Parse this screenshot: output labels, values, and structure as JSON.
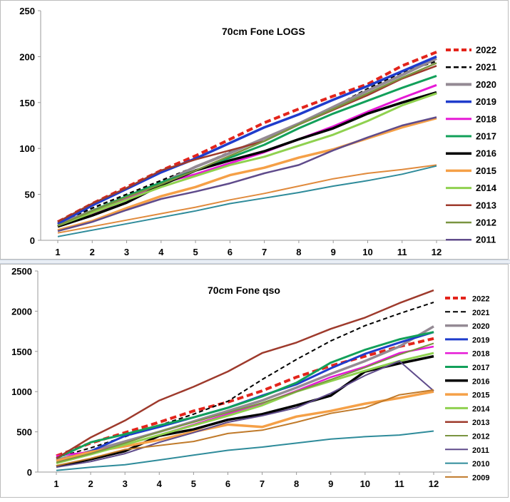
{
  "chart_data": [
    {
      "type": "line",
      "title": "70cm Fone LOGS",
      "x": [
        1,
        2,
        3,
        4,
        5,
        6,
        7,
        8,
        9,
        10,
        11,
        12
      ],
      "ylim": [
        0,
        250
      ],
      "yticks": [
        0,
        50,
        100,
        150,
        200,
        250
      ],
      "grid": false,
      "legend_position": "right",
      "series": [
        {
          "name": "2022",
          "color": "#e3241b",
          "dash": "dashed",
          "width": 4,
          "values": [
            20,
            40,
            58,
            76,
            92,
            110,
            128,
            143,
            157,
            170,
            190,
            205
          ]
        },
        {
          "name": "2021",
          "color": "#000000",
          "dash": "dashed",
          "width": 2.5,
          "values": [
            18,
            35,
            50,
            65,
            80,
            96,
            111,
            127,
            145,
            165,
            183,
            195
          ]
        },
        {
          "name": "2020",
          "color": "#948a94",
          "dash": "solid",
          "width": 4,
          "values": [
            17,
            32,
            46,
            62,
            80,
            95,
            111,
            127,
            145,
            163,
            180,
            198
          ]
        },
        {
          "name": "2019",
          "color": "#1f3ccc",
          "dash": "solid",
          "width": 3.5,
          "values": [
            18,
            38,
            56,
            74,
            89,
            106,
            123,
            137,
            153,
            168,
            184,
            200
          ]
        },
        {
          "name": "2018",
          "color": "#e619d6",
          "dash": "solid",
          "width": 3,
          "values": [
            15,
            28,
            45,
            62,
            72,
            84,
            96,
            110,
            124,
            140,
            155,
            169
          ]
        },
        {
          "name": "2017",
          "color": "#12a05a",
          "dash": "solid",
          "width": 3,
          "values": [
            15,
            32,
            48,
            63,
            76,
            90,
            104,
            122,
            138,
            152,
            166,
            179
          ]
        },
        {
          "name": "2016",
          "color": "#000000",
          "dash": "solid",
          "width": 3.5,
          "values": [
            15,
            27,
            41,
            60,
            76,
            87,
            97,
            110,
            122,
            138,
            150,
            161
          ]
        },
        {
          "name": "2015",
          "color": "#f5a047",
          "dash": "solid",
          "width": 3.5,
          "values": [
            11,
            21,
            35,
            48,
            58,
            71,
            79,
            90,
            99,
            111,
            123,
            133
          ]
        },
        {
          "name": "2014",
          "color": "#8fd14f",
          "dash": "solid",
          "width": 3,
          "values": [
            16,
            30,
            44,
            58,
            70,
            82,
            91,
            103,
            115,
            130,
            147,
            160
          ]
        },
        {
          "name": "2013",
          "color": "#9e3a2c",
          "dash": "solid",
          "width": 2.5,
          "values": [
            20,
            40,
            57,
            76,
            88,
            98,
            108,
            126,
            142,
            158,
            176,
            190
          ]
        },
        {
          "name": "2012",
          "color": "#7a9440",
          "dash": "solid",
          "width": 2.5,
          "values": [
            16,
            32,
            47,
            61,
            76,
            92,
            108,
            126,
            143,
            160,
            177,
            193
          ]
        },
        {
          "name": "2011",
          "color": "#5f4b8b",
          "dash": "solid",
          "width": 2.5,
          "values": [
            10,
            20,
            33,
            45,
            53,
            62,
            73,
            82,
            98,
            112,
            125,
            134
          ]
        },
        {
          "name": "",
          "color": "#e08a3c",
          "dash": "solid",
          "width": 2,
          "values": [
            8,
            15,
            22,
            29,
            36,
            44,
            51,
            59,
            67,
            73,
            77,
            82
          ]
        },
        {
          "name": "",
          "color": "#2e8b9a",
          "dash": "solid",
          "width": 2,
          "values": [
            4,
            11,
            18,
            25,
            32,
            40,
            46,
            52,
            59,
            65,
            72,
            81
          ]
        }
      ]
    },
    {
      "type": "line",
      "title": "70cm Fone  qso",
      "x": [
        1,
        2,
        3,
        4,
        5,
        6,
        7,
        8,
        9,
        10,
        11,
        12
      ],
      "ylim": [
        0,
        2500
      ],
      "yticks": [
        0,
        500,
        1000,
        1500,
        2000,
        2500
      ],
      "grid": false,
      "legend_position": "right",
      "series": [
        {
          "name": "2022",
          "color": "#e3241b",
          "dash": "dashed",
          "width": 4,
          "values": [
            200,
            360,
            490,
            620,
            760,
            870,
            1010,
            1180,
            1320,
            1440,
            1560,
            1660
          ]
        },
        {
          "name": "2021",
          "color": "#000000",
          "dash": "dashed",
          "width": 2,
          "values": [
            180,
            300,
            440,
            580,
            720,
            880,
            1150,
            1400,
            1630,
            1820,
            1970,
            2110
          ]
        },
        {
          "name": "2020",
          "color": "#948a94",
          "dash": "solid",
          "width": 3.5,
          "values": [
            150,
            260,
            380,
            500,
            630,
            760,
            890,
            1050,
            1220,
            1380,
            1560,
            1810
          ]
        },
        {
          "name": "2019",
          "color": "#1f3ccc",
          "dash": "solid",
          "width": 3,
          "values": [
            140,
            260,
            450,
            560,
            680,
            800,
            950,
            1090,
            1290,
            1470,
            1610,
            1740
          ]
        },
        {
          "name": "2018",
          "color": "#e619d6",
          "dash": "solid",
          "width": 2.5,
          "values": [
            200,
            250,
            340,
            460,
            590,
            720,
            850,
            1010,
            1180,
            1310,
            1480,
            1560
          ]
        },
        {
          "name": "2017",
          "color": "#12a05a",
          "dash": "solid",
          "width": 3,
          "values": [
            170,
            370,
            470,
            580,
            680,
            800,
            940,
            1110,
            1360,
            1520,
            1650,
            1740
          ]
        },
        {
          "name": "2016",
          "color": "#000000",
          "dash": "solid",
          "width": 3.5,
          "values": [
            70,
            160,
            260,
            450,
            530,
            650,
            720,
            830,
            950,
            1250,
            1350,
            1440
          ]
        },
        {
          "name": "2015",
          "color": "#f5a047",
          "dash": "solid",
          "width": 3.5,
          "values": [
            140,
            250,
            320,
            400,
            500,
            590,
            560,
            690,
            760,
            850,
            920,
            1000
          ]
        },
        {
          "name": "2014",
          "color": "#8fd14f",
          "dash": "solid",
          "width": 3,
          "values": [
            110,
            220,
            340,
            460,
            580,
            700,
            830,
            1000,
            1130,
            1260,
            1380,
            1480
          ]
        },
        {
          "name": "2013",
          "color": "#9e3a2c",
          "dash": "solid",
          "width": 2.5,
          "values": [
            170,
            430,
            640,
            890,
            1060,
            1250,
            1480,
            1610,
            1780,
            1920,
            2100,
            2260
          ]
        },
        {
          "name": "2012",
          "color": "#7a9440",
          "dash": "solid",
          "width": 2,
          "values": [
            120,
            230,
            360,
            500,
            620,
            740,
            860,
            1000,
            1150,
            1300,
            1460,
            1600
          ]
        },
        {
          "name": "2011",
          "color": "#5f4b8b",
          "dash": "solid",
          "width": 2,
          "values": [
            60,
            130,
            230,
            370,
            490,
            620,
            700,
            800,
            980,
            1200,
            1380,
            1010
          ]
        },
        {
          "name": "2010",
          "color": "#2e8b9a",
          "dash": "solid",
          "width": 2,
          "values": [
            20,
            60,
            90,
            150,
            210,
            270,
            310,
            360,
            410,
            440,
            460,
            510
          ]
        },
        {
          "name": "2009",
          "color": "#c07a2a",
          "dash": "solid",
          "width": 2,
          "values": [
            80,
            170,
            280,
            330,
            380,
            480,
            520,
            620,
            730,
            800,
            960,
            1020
          ]
        }
      ]
    }
  ]
}
